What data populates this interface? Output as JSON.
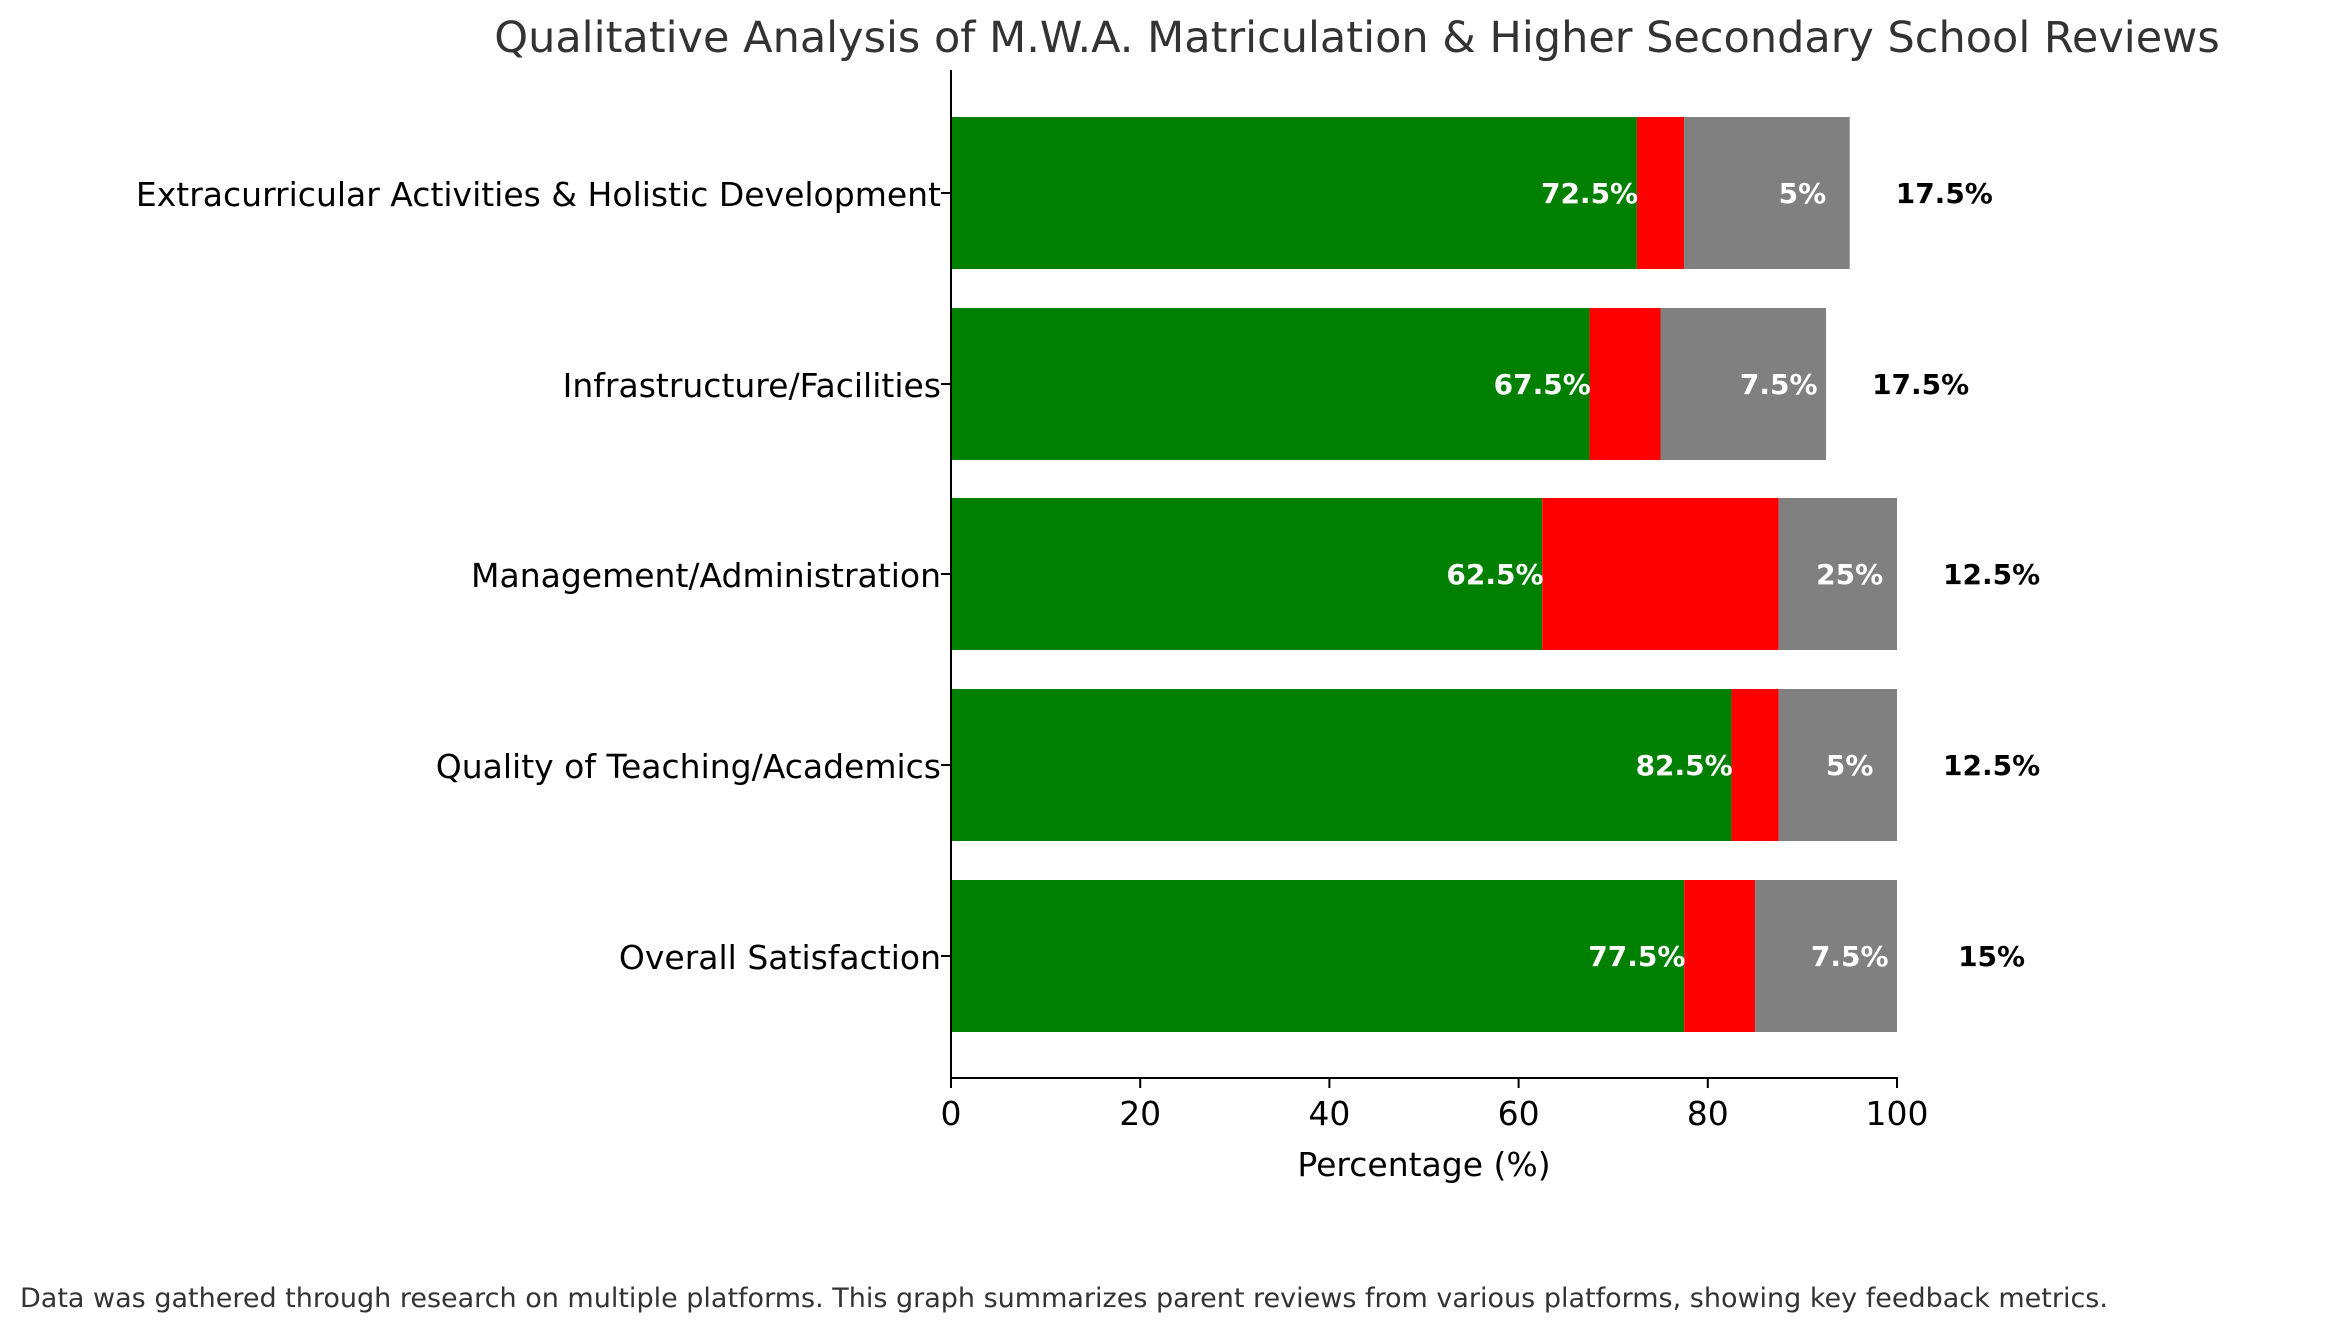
{
  "chart_data": {
    "type": "bar",
    "orientation": "horizontal",
    "stacked": true,
    "title": "Qualitative Analysis of M.W.A. Matriculation & Higher Secondary School Reviews",
    "xlabel": "Percentage (%)",
    "ylabel": "",
    "xlim": [
      0,
      100
    ],
    "xticks": [
      "0",
      "20",
      "40",
      "60",
      "80",
      "100"
    ],
    "grid": false,
    "legend": "none",
    "categories": [
      "Overall Satisfaction",
      "Quality of Teaching/Academics",
      "Management/Administration",
      "Infrastructure/Facilities",
      "Extracurricular Activities & Holistic Development"
    ],
    "series": [
      {
        "color": "#008000",
        "values": [
          77.5,
          82.5,
          62.5,
          67.5,
          72.5
        ],
        "labels": [
          "77.5%",
          "82.5%",
          "62.5%",
          "67.5%",
          "72.5%"
        ]
      },
      {
        "color": "#ff0000",
        "values": [
          7.5,
          5,
          25,
          7.5,
          5
        ]
      },
      {
        "color": "#808080",
        "values": [
          15,
          12.5,
          12.5,
          17.5,
          17.5
        ]
      }
    ],
    "inner_labels": [
      "7.5%",
      "5%",
      "25%",
      "7.5%",
      "5%"
    ],
    "outer_labels": [
      "15%",
      "12.5%",
      "12.5%",
      "17.5%",
      "17.5%"
    ]
  },
  "footnote": "Data was gathered through research on multiple platforms. This graph summarizes parent reviews from various platforms, showing key feedback metrics."
}
